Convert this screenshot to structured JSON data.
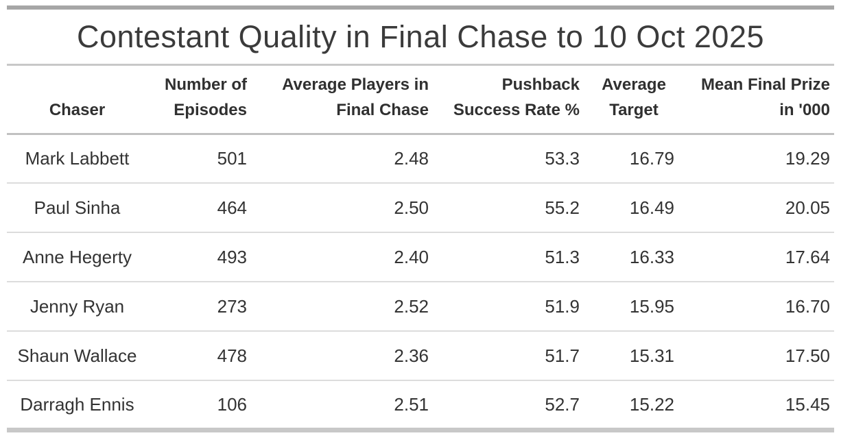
{
  "title": "Contestant Quality in Final Chase to 10 Oct 2025",
  "colors": {
    "top_bar": "#a6a6a6",
    "title_rule": "#c8c8c8",
    "header_rule": "#c1c1c1",
    "row_rule": "#dcdcdc",
    "bottom_bar": "#c8c8c8",
    "title_text": "#3b3b3b",
    "body_text": "#333333"
  },
  "table": {
    "header": {
      "chaser": {
        "line1": "",
        "line2": "Chaser"
      },
      "episodes": {
        "line1": "Number of",
        "line2": "Episodes"
      },
      "avg_players": {
        "line1": "Average Players in",
        "line2": "Final Chase"
      },
      "pushback": {
        "line1": "Pushback",
        "line2": "Success Rate %"
      },
      "avg_target": {
        "line1": "Average",
        "line2": "Target"
      },
      "mean_prize": {
        "line1": "Mean Final Prize",
        "line2": "in '000"
      }
    },
    "rows": [
      {
        "chaser": "Mark Labbett",
        "episodes": "501",
        "avg_players": "2.48",
        "pushback": "53.3",
        "avg_target": "16.79",
        "mean_prize": "19.29"
      },
      {
        "chaser": "Paul Sinha",
        "episodes": "464",
        "avg_players": "2.50",
        "pushback": "55.2",
        "avg_target": "16.49",
        "mean_prize": "20.05"
      },
      {
        "chaser": "Anne Hegerty",
        "episodes": "493",
        "avg_players": "2.40",
        "pushback": "51.3",
        "avg_target": "16.33",
        "mean_prize": "17.64"
      },
      {
        "chaser": "Jenny Ryan",
        "episodes": "273",
        "avg_players": "2.52",
        "pushback": "51.9",
        "avg_target": "15.95",
        "mean_prize": "16.70"
      },
      {
        "chaser": "Shaun Wallace",
        "episodes": "478",
        "avg_players": "2.36",
        "pushback": "51.7",
        "avg_target": "15.31",
        "mean_prize": "17.50"
      },
      {
        "chaser": "Darragh Ennis",
        "episodes": "106",
        "avg_players": "2.51",
        "pushback": "52.7",
        "avg_target": "15.22",
        "mean_prize": "15.45"
      }
    ]
  },
  "chart_data": {
    "type": "table",
    "title": "Contestant Quality in Final Chase to 10 Oct 2025",
    "columns": [
      "Chaser",
      "Number of Episodes",
      "Average Players in Final Chase",
      "Pushback Success Rate %",
      "Average Target",
      "Mean Final Prize in '000"
    ],
    "rows": [
      [
        "Mark Labbett",
        501,
        2.48,
        53.3,
        16.79,
        19.29
      ],
      [
        "Paul Sinha",
        464,
        2.5,
        55.2,
        16.49,
        20.05
      ],
      [
        "Anne Hegerty",
        493,
        2.4,
        51.3,
        16.33,
        17.64
      ],
      [
        "Jenny Ryan",
        273,
        2.52,
        51.9,
        15.95,
        16.7
      ],
      [
        "Shaun Wallace",
        478,
        2.36,
        51.7,
        15.31,
        17.5
      ],
      [
        "Darragh Ennis",
        106,
        2.51,
        52.7,
        15.22,
        15.45
      ]
    ]
  }
}
